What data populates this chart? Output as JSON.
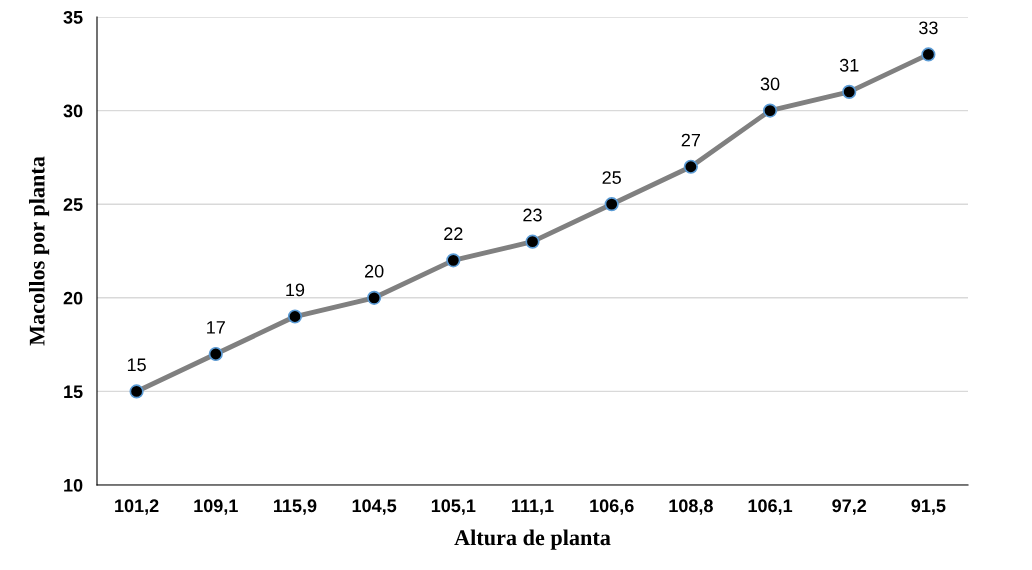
{
  "chart_data": {
    "type": "line",
    "xlabel": "Altura de planta",
    "ylabel": "Macollos por planta",
    "categories": [
      "101,2",
      "109,1",
      "115,9",
      "104,5",
      "105,1",
      "111,1",
      "106,6",
      "108,8",
      "106,1",
      "97,2",
      "91,5"
    ],
    "series": [
      {
        "color": "#808080",
        "values": [
          15,
          17,
          19,
          20,
          22,
          23,
          25,
          27,
          30,
          31,
          33
        ]
      }
    ],
    "ylim": [
      10,
      35
    ],
    "yticks": [
      10,
      15,
      20,
      25,
      30,
      35
    ],
    "grid": "y",
    "marker": "circle",
    "line_style": "solid",
    "data_labels": true
  }
}
